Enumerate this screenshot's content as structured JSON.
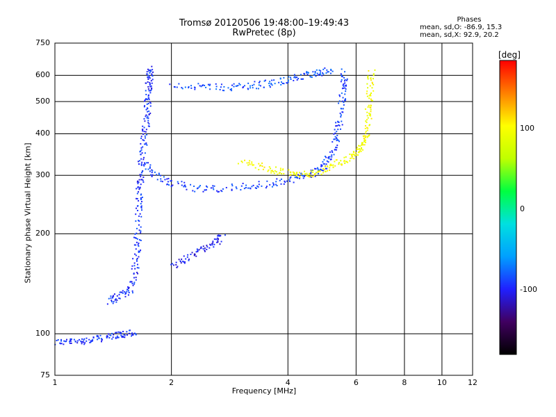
{
  "header": {
    "title_line1": "Tromsø 20120506 19:48:00–19:49:43",
    "title_line2": "RwPretec (8p)"
  },
  "phases": {
    "title": "Phases",
    "line1": "mean, sd,O: -86.9, 15.3",
    "line2": "mean, sd,X:  92.9, 20.2"
  },
  "colorbar": {
    "title": "[deg]",
    "ticks": [
      "100",
      "0",
      "-100"
    ],
    "colors": [
      "#000000",
      "#400060",
      "#2020ff",
      "#00a0ff",
      "#00e0e0",
      "#00ff40",
      "#c0ff00",
      "#ffff00",
      "#ff8000",
      "#ff0000"
    ]
  },
  "chart_data": {
    "type": "scatter",
    "title": "Tromsø 20120506 19:48:00–19:49:43",
    "subtitle": "RwPretec (8p)",
    "xlabel": "Frequency [MHz]",
    "ylabel": "Stationary phase Virtual Height [km]",
    "x_scale": "log",
    "y_scale": "log",
    "xlim": [
      1,
      12
    ],
    "ylim": [
      75,
      750
    ],
    "x_ticks": [
      "1",
      "2",
      "4",
      "6",
      "8",
      "10",
      "12"
    ],
    "x_tick_values": [
      1,
      2,
      4,
      6,
      8,
      10,
      12
    ],
    "y_ticks": [
      "750",
      "600",
      "500",
      "400",
      "300",
      "200",
      "100",
      "75"
    ],
    "y_tick_values": [
      750,
      600,
      500,
      400,
      300,
      200,
      100,
      75
    ],
    "grid": true,
    "series": [
      {
        "trace": "low_e_layer",
        "phase": -95,
        "points": [
          [
            1.0,
            95
          ],
          [
            1.1,
            95
          ],
          [
            1.2,
            96
          ],
          [
            1.3,
            97
          ],
          [
            1.4,
            99
          ],
          [
            1.5,
            100
          ],
          [
            1.6,
            101
          ]
        ]
      },
      {
        "trace": "cusp_1_2",
        "phase": -95,
        "points": [
          [
            1.38,
            125
          ],
          [
            1.45,
            130
          ],
          [
            1.55,
            135
          ],
          [
            1.6,
            150
          ],
          [
            1.62,
            175
          ],
          [
            1.63,
            200
          ],
          [
            1.64,
            240
          ],
          [
            1.65,
            270
          ],
          [
            1.66,
            300
          ],
          [
            1.68,
            350
          ],
          [
            1.7,
            400
          ],
          [
            1.72,
            450
          ],
          [
            1.73,
            500
          ],
          [
            1.74,
            550
          ],
          [
            1.75,
            600
          ],
          [
            1.76,
            640
          ]
        ]
      },
      {
        "trace": "f_layer_o",
        "phase": -90,
        "points": [
          [
            1.7,
            330
          ],
          [
            1.8,
            300
          ],
          [
            2.0,
            285
          ],
          [
            2.3,
            275
          ],
          [
            2.7,
            275
          ],
          [
            3.2,
            280
          ],
          [
            3.7,
            285
          ],
          [
            4.2,
            295
          ],
          [
            4.6,
            305
          ],
          [
            4.9,
            320
          ],
          [
            5.1,
            340
          ],
          [
            5.3,
            380
          ],
          [
            5.4,
            430
          ],
          [
            5.5,
            500
          ],
          [
            5.55,
            560
          ],
          [
            5.58,
            620
          ]
        ]
      },
      {
        "trace": "f_layer_upper_o",
        "phase": -85,
        "points": [
          [
            2.0,
            560
          ],
          [
            2.4,
            555
          ],
          [
            2.8,
            555
          ],
          [
            3.2,
            560
          ],
          [
            3.6,
            570
          ],
          [
            4.0,
            585
          ],
          [
            4.4,
            600
          ],
          [
            4.8,
            615
          ],
          [
            5.2,
            630
          ]
        ]
      },
      {
        "trace": "f_layer_x",
        "phase": 95,
        "points": [
          [
            3.0,
            330
          ],
          [
            3.4,
            320
          ],
          [
            3.8,
            310
          ],
          [
            4.2,
            305
          ],
          [
            4.6,
            305
          ],
          [
            5.0,
            315
          ],
          [
            5.4,
            330
          ],
          [
            5.8,
            345
          ],
          [
            6.1,
            360
          ],
          [
            6.3,
            380
          ],
          [
            6.4,
            420
          ],
          [
            6.45,
            480
          ],
          [
            6.5,
            550
          ],
          [
            6.55,
            620
          ]
        ]
      },
      {
        "trace": "sporadic_cluster",
        "phase": -105,
        "points": [
          [
            2.0,
            160
          ],
          [
            2.2,
            170
          ],
          [
            2.4,
            180
          ],
          [
            2.6,
            190
          ],
          [
            2.7,
            200
          ]
        ]
      }
    ]
  }
}
